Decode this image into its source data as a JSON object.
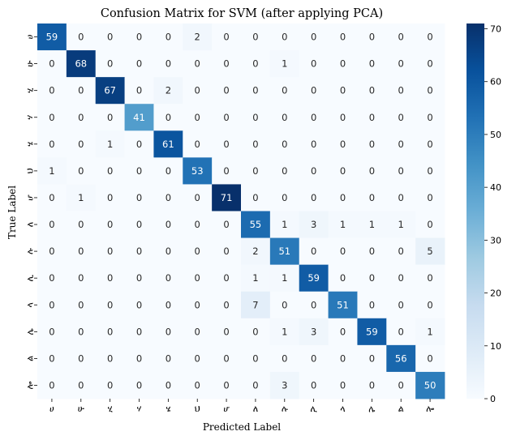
{
  "chart_data": {
    "type": "heatmap",
    "title": "Confusion Matrix for SVM (after applying PCA)",
    "xlabel": "Predicted Label",
    "ylabel": "True Label",
    "labels": [
      "ሀ",
      "ሁ",
      "ሂ",
      "ሃ",
      "ሄ",
      "ህ",
      "ሆ",
      "ለ",
      "ሉ",
      "ሊ",
      "ላ",
      "ሌ",
      "ል",
      "ሎ"
    ],
    "matrix": [
      [
        59,
        0,
        0,
        0,
        0,
        2,
        0,
        0,
        0,
        0,
        0,
        0,
        0,
        0
      ],
      [
        0,
        68,
        0,
        0,
        0,
        0,
        0,
        0,
        1,
        0,
        0,
        0,
        0,
        0
      ],
      [
        0,
        0,
        67,
        0,
        2,
        0,
        0,
        0,
        0,
        0,
        0,
        0,
        0,
        0
      ],
      [
        0,
        0,
        0,
        41,
        0,
        0,
        0,
        0,
        0,
        0,
        0,
        0,
        0,
        0
      ],
      [
        0,
        0,
        1,
        0,
        61,
        0,
        0,
        0,
        0,
        0,
        0,
        0,
        0,
        0
      ],
      [
        1,
        0,
        0,
        0,
        0,
        53,
        0,
        0,
        0,
        0,
        0,
        0,
        0,
        0
      ],
      [
        0,
        1,
        0,
        0,
        0,
        0,
        71,
        0,
        0,
        0,
        0,
        0,
        0,
        0
      ],
      [
        0,
        0,
        0,
        0,
        0,
        0,
        0,
        55,
        1,
        3,
        1,
        1,
        1,
        0
      ],
      [
        0,
        0,
        0,
        0,
        0,
        0,
        0,
        2,
        51,
        0,
        0,
        0,
        0,
        5
      ],
      [
        0,
        0,
        0,
        0,
        0,
        0,
        0,
        1,
        1,
        59,
        0,
        0,
        0,
        0
      ],
      [
        0,
        0,
        0,
        0,
        0,
        0,
        0,
        7,
        0,
        0,
        51,
        0,
        0,
        0
      ],
      [
        0,
        0,
        0,
        0,
        0,
        0,
        0,
        0,
        1,
        3,
        0,
        59,
        0,
        1
      ],
      [
        0,
        0,
        0,
        0,
        0,
        0,
        0,
        0,
        0,
        0,
        0,
        0,
        56,
        0
      ],
      [
        0,
        0,
        0,
        0,
        0,
        0,
        0,
        0,
        3,
        0,
        0,
        0,
        0,
        50
      ]
    ],
    "colorscale": "Blues",
    "vmin": 0,
    "vmax": 71,
    "colorbar_ticks": [
      0,
      10,
      20,
      30,
      40,
      50,
      60,
      70
    ],
    "grid": false
  }
}
